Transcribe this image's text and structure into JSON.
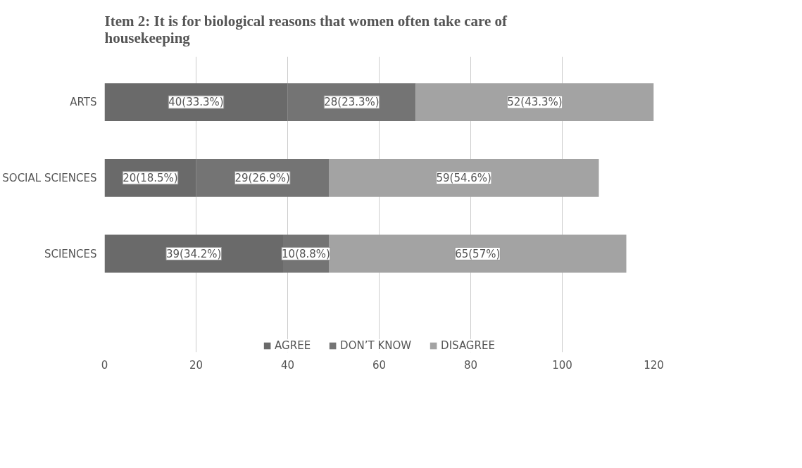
{
  "chart_data": {
    "type": "bar",
    "orientation": "horizontal",
    "stacked": true,
    "title": "Item 2: It is for biological reasons that women often take care of housekeeping",
    "categories": [
      "ARTS",
      "SOCIAL SCIENCES",
      "SCIENCES"
    ],
    "series": [
      {
        "name": "AGREE",
        "color": "#6a6a6a",
        "values": [
          40,
          20,
          39
        ],
        "value_labels": [
          "40(33.3%)",
          "20(18.5%)",
          "39(34.2%)"
        ]
      },
      {
        "name": "DON’T KNOW",
        "color": "#747474",
        "values": [
          28,
          29,
          10
        ],
        "value_labels": [
          "28(23.3%)",
          "29(26.9%)",
          "10(8.8%)"
        ]
      },
      {
        "name": "DISAGREE",
        "color": "#a3a3a3",
        "values": [
          52,
          59,
          65
        ],
        "value_labels": [
          "52(43.3%)",
          "59(54.6%)",
          "65(57%)"
        ]
      }
    ],
    "xlim": [
      0,
      120
    ],
    "xticks": [
      0,
      20,
      40,
      60,
      80,
      100,
      120
    ],
    "grid": "x",
    "legend": "bottom"
  }
}
